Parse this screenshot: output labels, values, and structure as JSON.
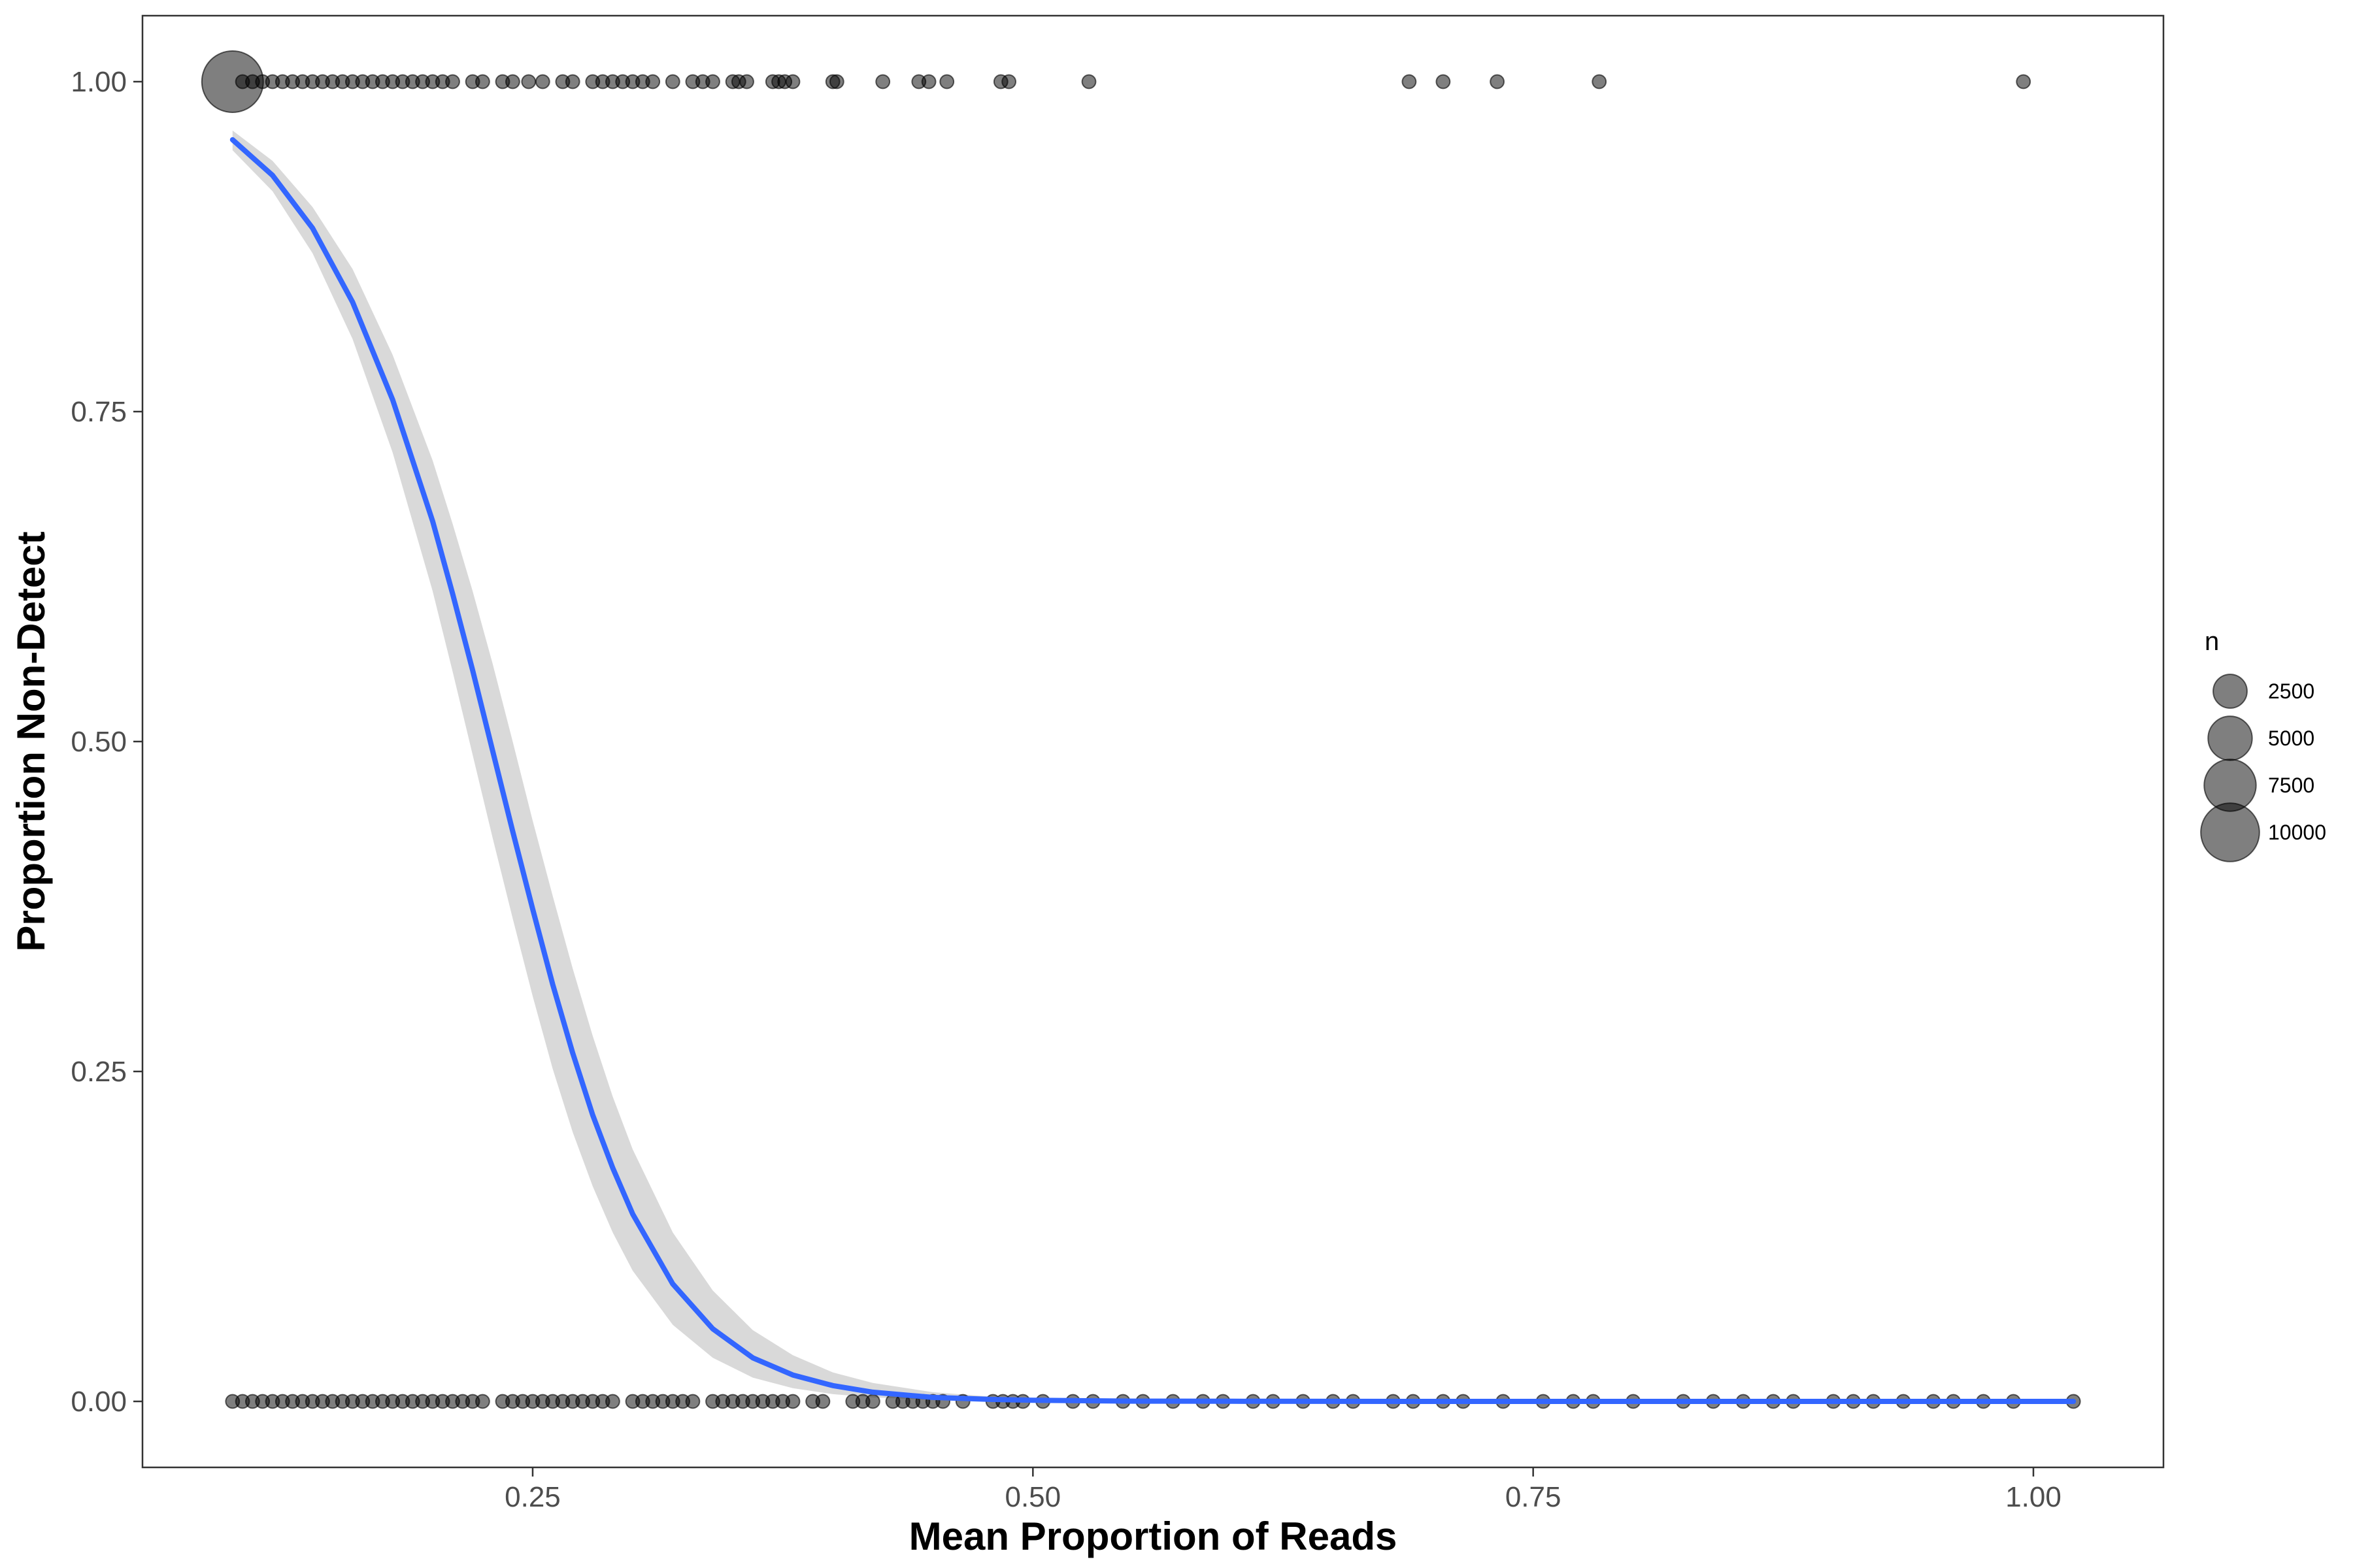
{
  "chart_data": {
    "type": "scatter",
    "title": "",
    "xlabel": "Mean Proportion of Reads",
    "ylabel": "Proportion Non-Detect",
    "xlim": [
      0.055,
      1.065
    ],
    "ylim": [
      -0.05,
      1.05
    ],
    "x_ticks": [
      0.25,
      0.5,
      0.75,
      1.0
    ],
    "x_tick_labels": [
      "0.25",
      "0.50",
      "0.75",
      "1.00"
    ],
    "y_ticks": [
      0.0,
      0.25,
      0.5,
      0.75,
      1.0
    ],
    "y_tick_labels": [
      "0.00",
      "0.25",
      "0.50",
      "0.75",
      "1.00"
    ],
    "grid": false,
    "legend": {
      "title": "n",
      "position": "right",
      "entries": [
        {
          "label": "2500",
          "value": 2500
        },
        {
          "label": "5000",
          "value": 5000
        },
        {
          "label": "7500",
          "value": 7500
        },
        {
          "label": "10000",
          "value": 10000
        }
      ]
    },
    "colors": {
      "points": "#000000",
      "fit_line": "#3366ff",
      "ribbon": "#bfbfbf",
      "panel_border": "#333333"
    },
    "series": [
      {
        "type": "points",
        "y": 1,
        "n": [
          11200,
          80,
          80,
          80,
          80,
          80,
          80,
          80,
          80,
          80,
          80,
          80,
          80,
          80,
          80,
          80,
          80,
          80,
          80,
          80,
          80,
          80,
          80,
          80,
          80,
          80,
          80,
          80,
          80,
          80,
          80,
          80,
          80,
          80,
          80,
          80,
          80,
          80,
          80,
          80,
          80,
          80,
          80,
          80,
          80,
          80,
          80,
          80,
          80,
          80,
          80,
          80,
          80,
          80,
          80,
          80,
          80,
          80,
          80,
          80,
          80,
          80,
          80
        ],
        "x": [
          0.1,
          0.105,
          0.11,
          0.115,
          0.12,
          0.125,
          0.13,
          0.135,
          0.14,
          0.145,
          0.15,
          0.155,
          0.16,
          0.165,
          0.17,
          0.175,
          0.18,
          0.185,
          0.19,
          0.195,
          0.2,
          0.205,
          0.21,
          0.22,
          0.225,
          0.235,
          0.24,
          0.248,
          0.255,
          0.265,
          0.27,
          0.28,
          0.285,
          0.29,
          0.295,
          0.3,
          0.305,
          0.31,
          0.32,
          0.33,
          0.335,
          0.34,
          0.35,
          0.353,
          0.357,
          0.37,
          0.373,
          0.376,
          0.38,
          0.4,
          0.402,
          0.425,
          0.443,
          0.448,
          0.457,
          0.484,
          0.488,
          0.528,
          0.688,
          0.705,
          0.732,
          0.783,
          0.995
        ]
      },
      {
        "type": "points",
        "y": 0,
        "n": [
          80,
          80,
          80,
          80,
          80,
          80,
          80,
          80,
          80,
          80,
          80,
          80,
          80,
          80,
          80,
          80,
          80,
          80,
          80,
          80,
          80,
          80,
          80,
          80,
          80,
          80,
          80,
          80,
          80,
          80,
          80,
          80,
          80,
          80,
          80,
          80,
          80,
          80,
          80,
          80,
          80,
          80,
          80,
          80,
          80,
          80,
          80,
          80,
          80,
          80,
          80,
          80,
          80,
          80,
          80,
          80,
          80,
          80,
          80,
          80,
          80,
          80,
          80,
          80,
          80,
          80,
          80,
          80,
          80,
          80,
          80,
          80,
          80,
          80,
          80,
          80,
          80,
          80,
          80,
          80,
          80,
          80,
          80,
          80,
          80,
          80,
          80,
          80,
          80,
          80,
          80,
          80,
          80,
          80,
          80,
          80,
          80,
          80,
          80,
          80,
          80,
          80,
          80,
          80,
          80,
          80
        ],
        "x": [
          0.1,
          0.105,
          0.11,
          0.115,
          0.12,
          0.125,
          0.13,
          0.135,
          0.14,
          0.145,
          0.15,
          0.155,
          0.16,
          0.165,
          0.17,
          0.175,
          0.18,
          0.185,
          0.19,
          0.195,
          0.2,
          0.205,
          0.21,
          0.215,
          0.22,
          0.225,
          0.235,
          0.24,
          0.245,
          0.25,
          0.255,
          0.26,
          0.265,
          0.27,
          0.275,
          0.28,
          0.285,
          0.29,
          0.3,
          0.305,
          0.31,
          0.315,
          0.32,
          0.325,
          0.33,
          0.34,
          0.345,
          0.35,
          0.355,
          0.36,
          0.365,
          0.37,
          0.375,
          0.38,
          0.39,
          0.395,
          0.41,
          0.415,
          0.42,
          0.43,
          0.435,
          0.44,
          0.445,
          0.45,
          0.455,
          0.465,
          0.48,
          0.485,
          0.49,
          0.495,
          0.505,
          0.52,
          0.53,
          0.545,
          0.555,
          0.57,
          0.585,
          0.595,
          0.61,
          0.62,
          0.635,
          0.65,
          0.66,
          0.68,
          0.69,
          0.705,
          0.715,
          0.735,
          0.755,
          0.77,
          0.78,
          0.8,
          0.825,
          0.84,
          0.855,
          0.87,
          0.88,
          0.9,
          0.91,
          0.92,
          0.935,
          0.95,
          0.96,
          0.975,
          0.99,
          1.02
        ]
      },
      {
        "type": "logistic_fit",
        "x": [
          0.1,
          0.12,
          0.14,
          0.16,
          0.18,
          0.2,
          0.21,
          0.22,
          0.23,
          0.24,
          0.25,
          0.26,
          0.27,
          0.28,
          0.29,
          0.3,
          0.32,
          0.34,
          0.36,
          0.38,
          0.4,
          0.42,
          0.45,
          0.48,
          0.5,
          0.55,
          0.6,
          0.7,
          0.8,
          0.9,
          1.02
        ],
        "y": [
          0.956,
          0.929,
          0.889,
          0.833,
          0.759,
          0.667,
          0.612,
          0.554,
          0.493,
          0.432,
          0.373,
          0.316,
          0.264,
          0.217,
          0.177,
          0.142,
          0.089,
          0.055,
          0.033,
          0.02,
          0.012,
          0.007,
          0.003,
          0.0015,
          0.0009,
          0.0002,
          0.0001,
          0.0,
          0.0,
          0.0,
          0.0
        ],
        "ci_lower": [
          0.948,
          0.917,
          0.87,
          0.805,
          0.719,
          0.614,
          0.553,
          0.49,
          0.427,
          0.366,
          0.307,
          0.252,
          0.204,
          0.163,
          0.128,
          0.099,
          0.058,
          0.033,
          0.018,
          0.01,
          0.0055,
          0.003,
          0.0012,
          0.0005,
          0.0003,
          0.0001,
          0.0,
          0.0,
          0.0,
          0.0,
          0.0
        ],
        "ci_upper": [
          0.963,
          0.94,
          0.905,
          0.858,
          0.793,
          0.713,
          0.665,
          0.614,
          0.559,
          0.5,
          0.44,
          0.383,
          0.328,
          0.277,
          0.231,
          0.191,
          0.128,
          0.084,
          0.054,
          0.035,
          0.022,
          0.014,
          0.007,
          0.0035,
          0.0023,
          0.0007,
          0.0002,
          0.0,
          0.0,
          0.0,
          0.0
        ]
      }
    ]
  }
}
